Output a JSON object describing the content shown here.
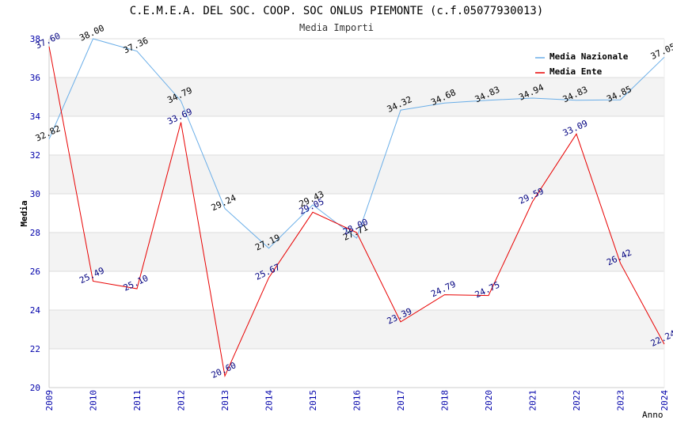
{
  "chart_data": {
    "type": "line",
    "title": "C.E.M.E.A. DEL SOC. COOP. SOC ONLUS PIEMONTE (c.f.05077930013)",
    "subtitle": "Media Importi",
    "xlabel": "Anno",
    "ylabel": "Media",
    "ylim": [
      20,
      38
    ],
    "yticks": [
      20,
      22,
      24,
      26,
      28,
      30,
      32,
      34,
      36,
      38
    ],
    "categories": [
      "2009",
      "2010",
      "2011",
      "2012",
      "2013",
      "2014",
      "2015",
      "2016",
      "2017",
      "2018",
      "2020",
      "2021",
      "2022",
      "2023",
      "2024"
    ],
    "legend_position": "top-right",
    "series": [
      {
        "name": "Media Nazionale",
        "color": "#6aaee8",
        "values": [
          32.82,
          38.0,
          37.36,
          34.79,
          29.24,
          27.19,
          29.43,
          27.71,
          34.32,
          34.68,
          34.83,
          34.94,
          34.83,
          34.85,
          37.05
        ],
        "labels": [
          "32.82",
          "38.00",
          "37.36",
          "34.79",
          "29.24",
          "27.19",
          "29.43",
          "27.71",
          "34.32",
          "34.68",
          "34.83",
          "34.94",
          "34.83",
          "34.85",
          "37.05"
        ]
      },
      {
        "name": "Media Ente",
        "color": "#e80000",
        "values": [
          37.6,
          25.49,
          25.1,
          33.69,
          20.6,
          25.67,
          29.05,
          28.0,
          23.39,
          24.79,
          24.75,
          29.59,
          33.09,
          26.42,
          22.24
        ],
        "labels": [
          "37.60",
          "25.49",
          "25.10",
          "33.69",
          "20.60",
          "25.67",
          "29.05",
          "28.00",
          "23.39",
          "24.79",
          "24.75",
          "29.59",
          "33.09",
          "26.42",
          "22.24"
        ]
      }
    ]
  }
}
